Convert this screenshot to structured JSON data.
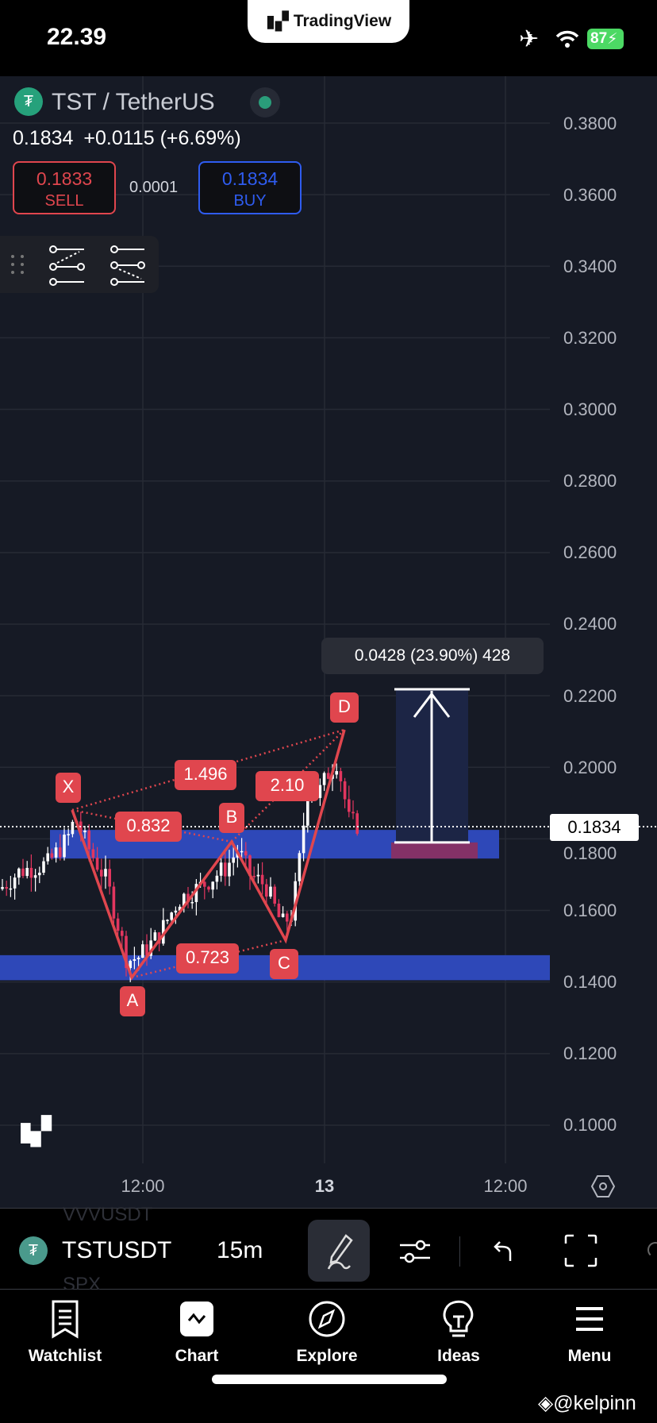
{
  "status_bar": {
    "time": "22.39",
    "app_pill": "TradingView",
    "battery": "87"
  },
  "symbol": {
    "title": "TST / TetherUS",
    "last": "0.1834",
    "change": "+0.0115 (+6.69%)",
    "sell_price": "0.1833",
    "sell_label": "SELL",
    "spread": "0.0001",
    "buy_price": "0.1834",
    "buy_label": "BUY"
  },
  "price_axis": [
    "0.3800",
    "0.3600",
    "0.3400",
    "0.3200",
    "0.3000",
    "0.2800",
    "0.2600",
    "0.2400",
    "0.2200",
    "0.2000",
    "0.1800",
    "0.1600",
    "0.1400",
    "0.1200",
    "0.1000"
  ],
  "current_price_label": "0.1834",
  "time_axis": [
    "12:00",
    "13",
    "12:00"
  ],
  "pattern": {
    "points": [
      {
        "label": "X",
        "price": 0.188
      },
      {
        "label": "A",
        "price": 0.141
      },
      {
        "label": "B",
        "price": 0.179
      },
      {
        "label": "C",
        "price": 0.152
      },
      {
        "label": "D",
        "price": 0.2105
      }
    ],
    "ratios": [
      "1.496",
      "0.832",
      "2.10",
      "0.723"
    ]
  },
  "zones": [
    {
      "from": 0.1745,
      "to": 0.1825
    },
    {
      "from": 0.1405,
      "to": 0.1475
    }
  ],
  "position": {
    "tooltip": "0.0428 (23.90%) 428",
    "entry": 0.179,
    "target": 0.2218,
    "stop": 0.1745
  },
  "toolbar": {
    "symbol": "TSTUSDT",
    "interval": "15m",
    "ghost_above": "VVVUSDT",
    "ghost_below": "SPX"
  },
  "nav": [
    {
      "label": "Watchlist",
      "icon": "bookmark-list-icon"
    },
    {
      "label": "Chart",
      "icon": "chart-icon"
    },
    {
      "label": "Explore",
      "icon": "compass-icon"
    },
    {
      "label": "Ideas",
      "icon": "lightbulb-icon"
    },
    {
      "label": "Menu",
      "icon": "hamburger-icon"
    }
  ],
  "watermark": "@kelpinn",
  "colors": {
    "bearish": "#e2365f",
    "bullish": "#ffffff",
    "pattern": "#e0464e",
    "zone": "#2e48b8",
    "sell": "#e0464e",
    "buy": "#2f5cf0"
  }
}
